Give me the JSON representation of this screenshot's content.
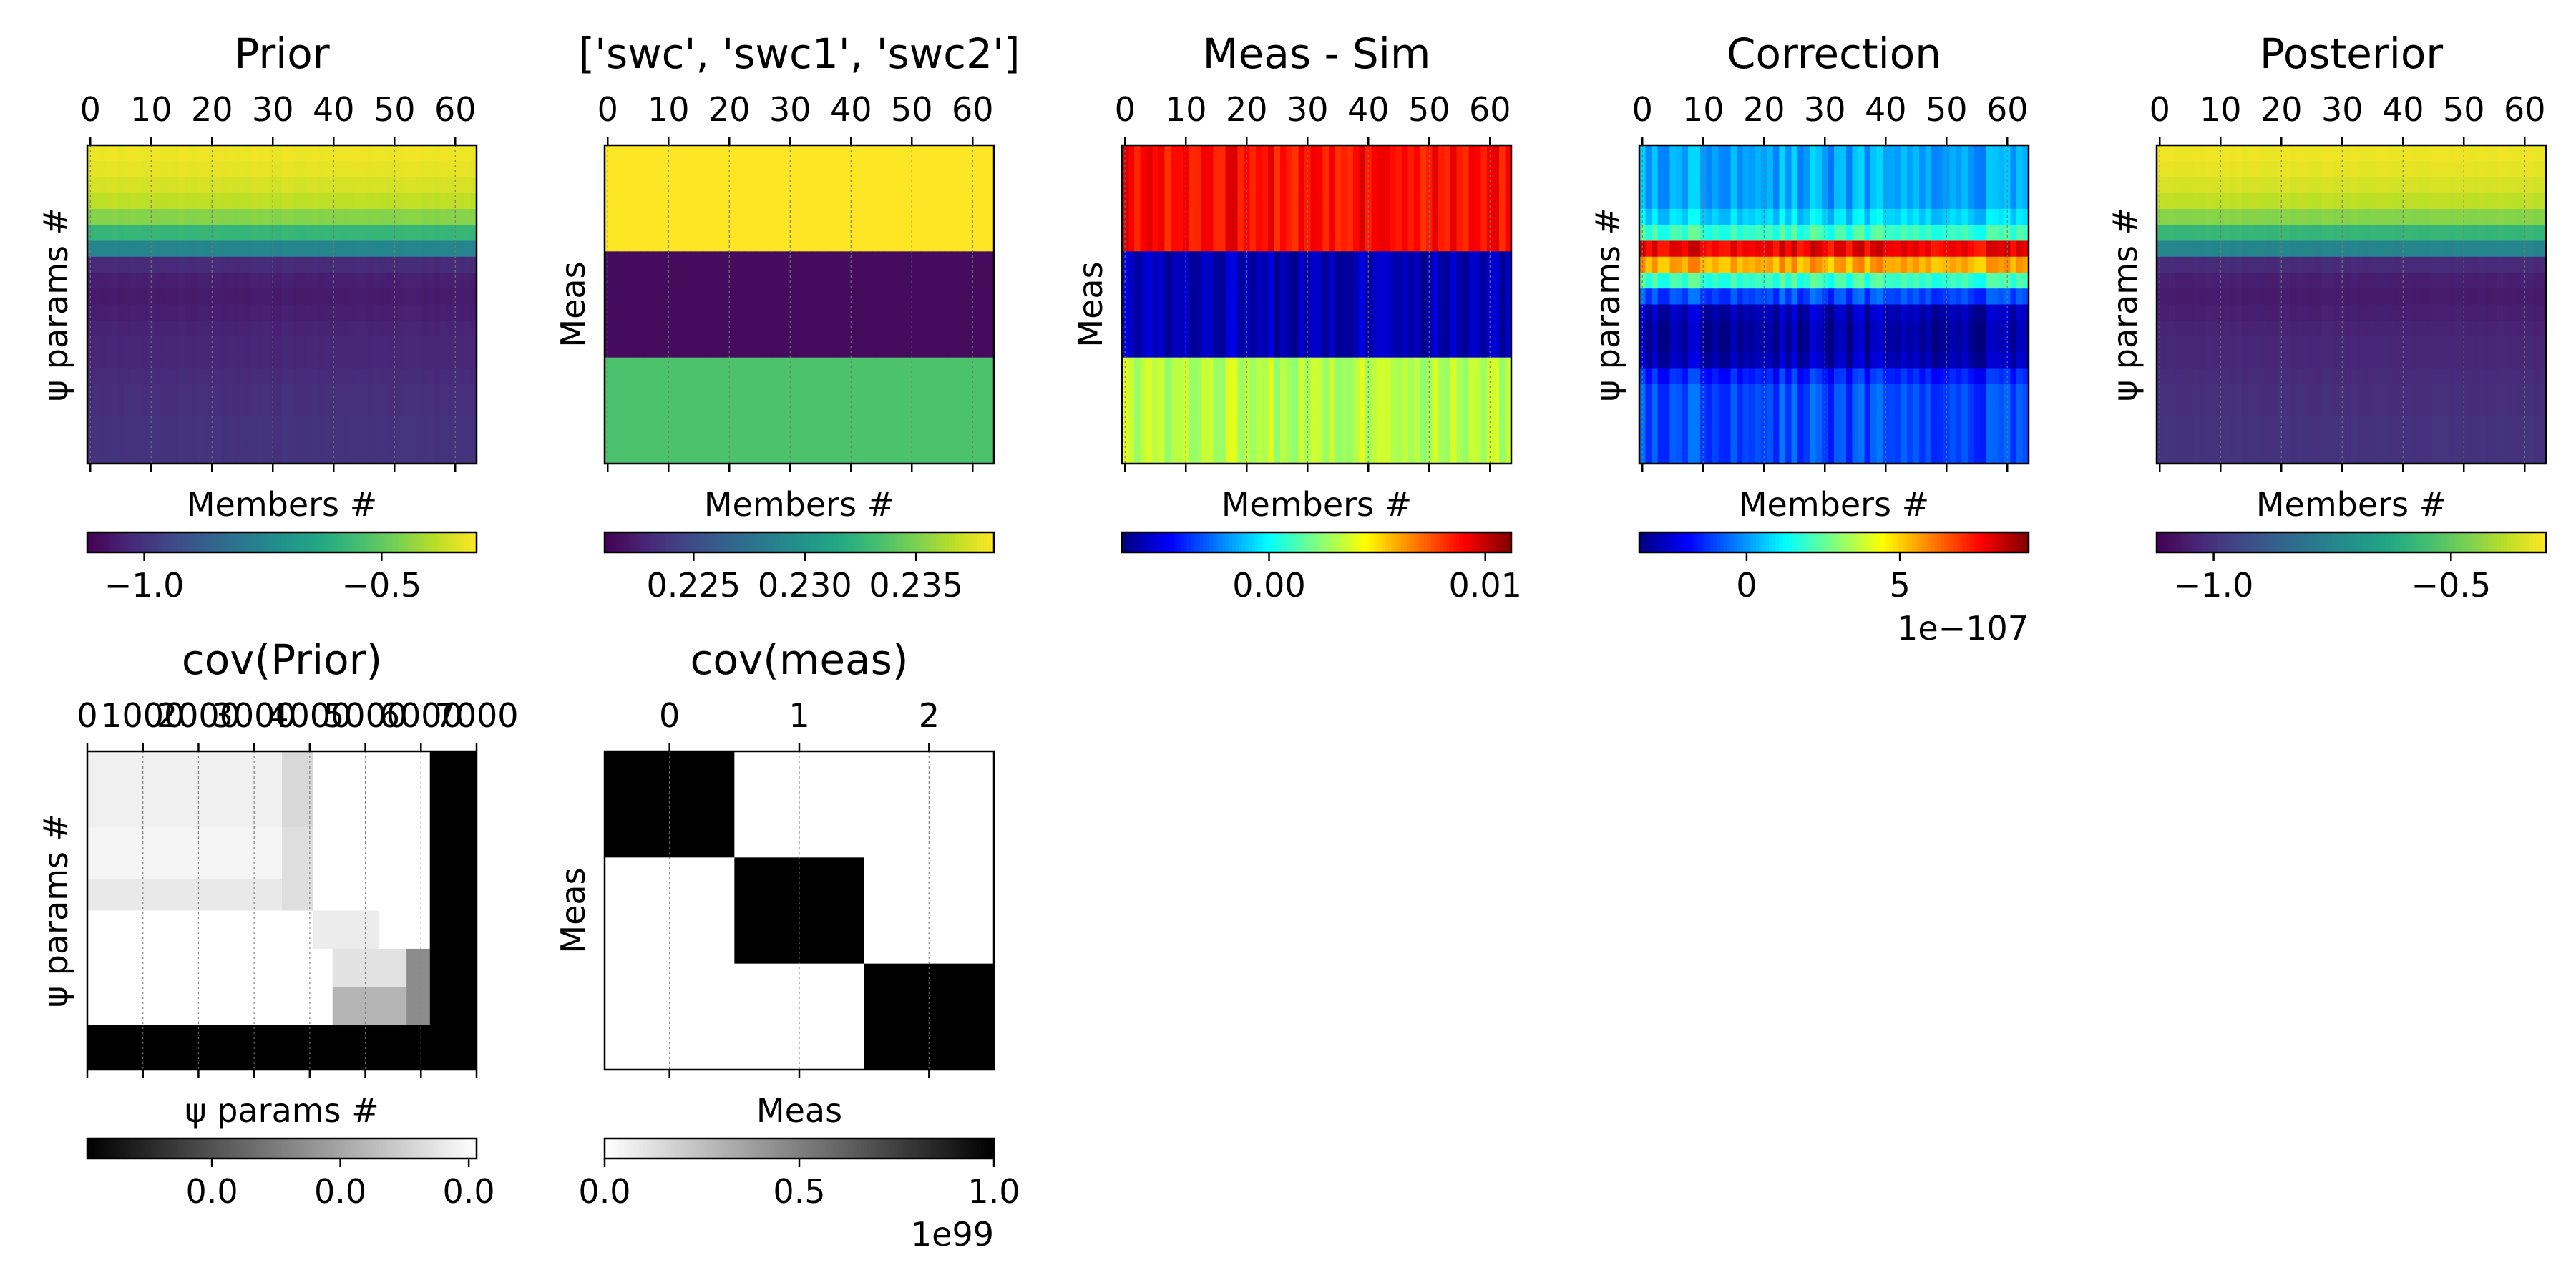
{
  "colors": {
    "viridis": [
      "#440154",
      "#482475",
      "#414487",
      "#355f8d",
      "#2a788e",
      "#21918c",
      "#22a884",
      "#44bf70",
      "#7ad151",
      "#bddf26",
      "#fde725"
    ],
    "jet": [
      "#00007f",
      "#0000ff",
      "#007fff",
      "#00ffff",
      "#7fff7f",
      "#ffff00",
      "#ff7f00",
      "#ff0000",
      "#7f0000"
    ],
    "grey": [
      "#000000",
      "#ffffff"
    ],
    "gray_r": [
      "#ffffff",
      "#000000"
    ]
  },
  "chart_data": [
    {
      "type": "heatmap",
      "title": "Prior",
      "xlabel": "Members #",
      "ylabel": "ψ params #",
      "x_ticks": [
        "0",
        "10",
        "20",
        "30",
        "40",
        "50",
        "60"
      ],
      "n_members": 64,
      "row_values": [
        -0.32,
        -0.33,
        -0.35,
        -0.38,
        -0.45,
        -0.58,
        -0.75,
        -1.02,
        -1.05,
        -1.06,
        -1.05,
        -1.04,
        -1.03,
        -1.03,
        -1.02,
        -1.01,
        -1.01,
        -1.0,
        -1.0,
        -1.0
      ],
      "colormap": "viridis",
      "colorbar": {
        "min": -1.12,
        "max": -0.3,
        "ticks": [
          {
            "v": -1.0,
            "label": "−1.0"
          },
          {
            "v": -0.5,
            "label": "−0.5"
          }
        ],
        "offset": ""
      }
    },
    {
      "type": "heatmap",
      "title": "['swc', 'swc1', 'swc2']",
      "xlabel": "Members #",
      "ylabel": "Meas",
      "x_ticks": [
        "0",
        "10",
        "20",
        "30",
        "40",
        "50",
        "60"
      ],
      "n_members": 64,
      "row_values": [
        0.2385,
        0.2215,
        0.2335
      ],
      "colormap": "viridis",
      "colorbar": {
        "min": 0.221,
        "max": 0.2385,
        "ticks": [
          {
            "v": 0.225,
            "label": "0.225"
          },
          {
            "v": 0.23,
            "label": "0.230"
          },
          {
            "v": 0.235,
            "label": "0.235"
          }
        ],
        "offset": ""
      }
    },
    {
      "type": "heatmap",
      "title": "Meas - Sim",
      "xlabel": "Members #",
      "ylabel": "Meas",
      "x_ticks": [
        "0",
        "10",
        "20",
        "30",
        "40",
        "50",
        "60"
      ],
      "n_members": 64,
      "row_values": [
        0.0088,
        -0.0058,
        0.0032
      ],
      "colormap": "jet",
      "colorbar": {
        "min": -0.0068,
        "max": 0.0112,
        "ticks": [
          {
            "v": 0.0,
            "label": "0.00"
          },
          {
            "v": 0.01,
            "label": "0.01"
          }
        ],
        "offset": ""
      }
    },
    {
      "type": "heatmap",
      "title": "Correction",
      "xlabel": "Members #",
      "ylabel": "ψ params #",
      "x_ticks": [
        "0",
        "10",
        "20",
        "30",
        "40",
        "50",
        "60"
      ],
      "n_members": 64,
      "row_values": [
        0.2,
        0.2,
        0.2,
        0.2,
        0.8,
        2.0,
        7.8,
        5.5,
        2.0,
        -1.0,
        -2.8,
        -3.0,
        -3.0,
        -2.8,
        -1.5,
        -1.0,
        -1.0,
        -1.0,
        -1.0,
        -1.0
      ],
      "colormap": "jet",
      "colorbar": {
        "min": -3.5,
        "max": 9.2,
        "ticks": [
          {
            "v": 0,
            "label": "0"
          },
          {
            "v": 5,
            "label": "5"
          }
        ],
        "offset": "1e−107"
      }
    },
    {
      "type": "heatmap",
      "title": "Posterior",
      "xlabel": "Members #",
      "ylabel": "ψ params #",
      "x_ticks": [
        "0",
        "10",
        "20",
        "30",
        "40",
        "50",
        "60"
      ],
      "n_members": 64,
      "row_values": [
        -0.32,
        -0.33,
        -0.35,
        -0.38,
        -0.45,
        -0.58,
        -0.75,
        -1.02,
        -1.05,
        -1.06,
        -1.05,
        -1.04,
        -1.03,
        -1.03,
        -1.02,
        -1.01,
        -1.01,
        -1.0,
        -1.0,
        -1.0
      ],
      "colormap": "viridis",
      "colorbar": {
        "min": -1.12,
        "max": -0.3,
        "ticks": [
          {
            "v": -1.0,
            "label": "−1.0"
          },
          {
            "v": -0.5,
            "label": "−0.5"
          }
        ],
        "offset": ""
      }
    },
    {
      "type": "heatmap",
      "title": "cov(Prior)",
      "xlabel": "ψ params #",
      "ylabel": "ψ params #",
      "x_ticks": [
        "0",
        "1000",
        "2000",
        "3000",
        "4000",
        "5000",
        "6000",
        "7000"
      ],
      "x_range": [
        0,
        7000
      ],
      "colormap": "grey",
      "colorbar": {
        "min": -1.0,
        "max": 0.0,
        "ticks": [
          {
            "v": -0.68,
            "label": "0.0"
          },
          {
            "v": -0.35,
            "label": "0.0"
          },
          {
            "v": -0.02,
            "label": "0.0"
          }
        ],
        "offset": ""
      }
    },
    {
      "type": "heatmap",
      "title": "cov(meas)",
      "xlabel": "Meas",
      "ylabel": "Meas",
      "x_ticks": [
        "0",
        "1",
        "2"
      ],
      "matrix": [
        [
          1,
          0,
          0
        ],
        [
          0,
          1,
          0
        ],
        [
          0,
          0,
          1
        ]
      ],
      "colormap": "gray_r",
      "colorbar": {
        "min": 0.0,
        "max": 1.0,
        "ticks": [
          {
            "v": 0.0,
            "label": "0.0"
          },
          {
            "v": 0.5,
            "label": "0.5"
          },
          {
            "v": 1.0,
            "label": "1.0"
          }
        ],
        "offset": "1e99"
      }
    }
  ]
}
